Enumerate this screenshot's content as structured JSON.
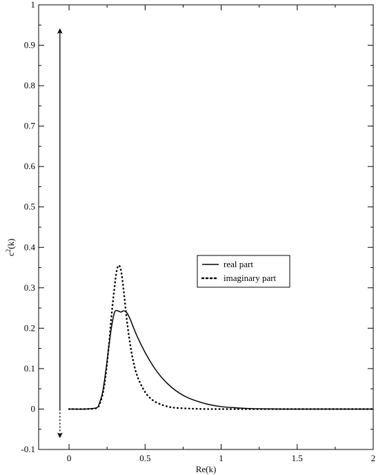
{
  "chart_data": {
    "type": "line",
    "xlabel": "Re(k)",
    "ylabel_base": "c",
    "ylabel_sup": "2",
    "ylabel_suffix": "(k)",
    "xlim": [
      -0.2,
      2
    ],
    "ylim": [
      -0.1,
      1
    ],
    "xticks": [
      0,
      0.5,
      1,
      1.5,
      2
    ],
    "xtick_labels": [
      "0",
      "0.5",
      "1",
      "1.5",
      "2"
    ],
    "yticks": [
      -0.1,
      0,
      0.1,
      0.2,
      0.3,
      0.4,
      0.5,
      0.6,
      0.7,
      0.8,
      0.9,
      1
    ],
    "ytick_labels": [
      "-0.1",
      "0",
      "0.1",
      "0.2",
      "0.3",
      "0.4",
      "0.5",
      "0.6",
      "0.7",
      "0.8",
      "0.9",
      "1"
    ],
    "grid": false,
    "legend_position": "center-right",
    "series": [
      {
        "name": "real part",
        "style": "solid",
        "color": "#000000",
        "x": [
          0,
          0.1,
          0.18,
          0.2,
          0.22,
          0.24,
          0.26,
          0.28,
          0.3,
          0.32,
          0.34,
          0.36,
          0.38,
          0.4,
          0.42,
          0.45,
          0.5,
          0.55,
          0.6,
          0.65,
          0.7,
          0.75,
          0.8,
          0.9,
          1.0,
          1.1,
          1.2,
          1.4,
          1.6,
          1.8,
          2.0
        ],
        "y": [
          0,
          0,
          0.003,
          0.015,
          0.04,
          0.09,
          0.15,
          0.205,
          0.24,
          0.243,
          0.24,
          0.243,
          0.238,
          0.224,
          0.205,
          0.178,
          0.14,
          0.108,
          0.082,
          0.062,
          0.046,
          0.034,
          0.025,
          0.013,
          0.006,
          0.003,
          0.001,
          0,
          0,
          0,
          0
        ]
      },
      {
        "name": "imaginary part",
        "style": "dotted",
        "color": "#000000",
        "x": [
          0,
          0.1,
          0.18,
          0.2,
          0.22,
          0.24,
          0.26,
          0.28,
          0.3,
          0.31,
          0.32,
          0.33,
          0.34,
          0.35,
          0.36,
          0.38,
          0.4,
          0.42,
          0.45,
          0.5,
          0.55,
          0.6,
          0.65,
          0.7,
          0.8,
          0.9,
          1.0,
          1.2,
          1.5,
          2.0
        ],
        "y": [
          0,
          0,
          0.002,
          0.012,
          0.035,
          0.08,
          0.15,
          0.235,
          0.305,
          0.335,
          0.352,
          0.355,
          0.345,
          0.322,
          0.29,
          0.22,
          0.165,
          0.122,
          0.08,
          0.042,
          0.022,
          0.012,
          0.006,
          0.003,
          0.001,
          0,
          0,
          0,
          0,
          0
        ]
      }
    ],
    "annotations": [
      {
        "type": "arrow",
        "style": "solid",
        "x": -0.06,
        "y_from": 0,
        "y_to": 0.935
      },
      {
        "type": "arrow",
        "style": "dotted",
        "x": -0.06,
        "y_from": 0,
        "y_to": -0.065
      }
    ]
  }
}
